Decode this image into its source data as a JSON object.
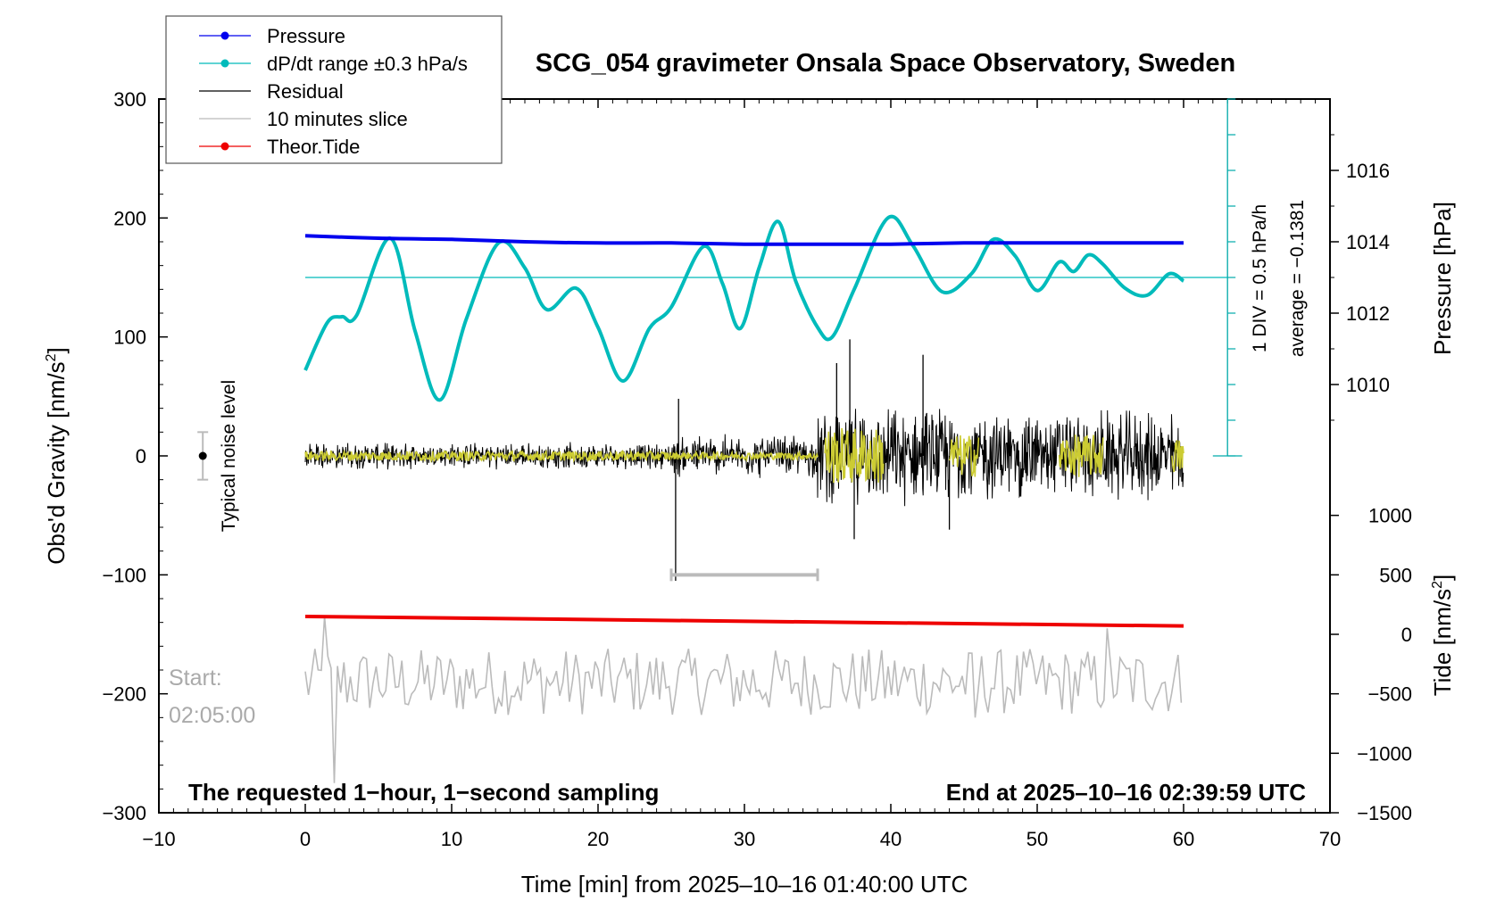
{
  "chart_data": {
    "type": "line",
    "title": "SCG_054 gravimeter Onsala Space Observatory, Sweden",
    "xlabel": "Time [min] from 2025–10–16 01:40:00 UTC",
    "ylabel_left": "Obs'd Gravity [nm/s",
    "ylabel_left_sup": "2",
    "ylabel_left_end": "]",
    "ylabel_right_pressure": "Pressure [hPa]",
    "ylabel_right_tide": "Tide [nm/s",
    "ylabel_right_tide_sup": "2",
    "ylabel_right_tide_end": "]",
    "xlim": [
      -10,
      70
    ],
    "ylim": [
      -300,
      300
    ],
    "x_ticks": [
      "−10",
      "0",
      "10",
      "20",
      "30",
      "40",
      "50",
      "60",
      "70"
    ],
    "y_ticks": [
      "−300",
      "−200",
      "−100",
      "0",
      "100",
      "200",
      "300"
    ],
    "pressure_axis": {
      "ticks": [
        "1010",
        "1012",
        "1014",
        "1016"
      ],
      "tick_values": [
        1010,
        1012,
        1014,
        1016
      ],
      "mapping": {
        "hpa_a": 1010,
        "grav_a": 60,
        "hpa_b": 1016,
        "grav_b": 240
      }
    },
    "tide_axis": {
      "ticks": [
        "1000",
        "500",
        "0",
        "−500",
        "−1000",
        "−1500"
      ],
      "tick_values": [
        1000,
        500,
        0,
        -500,
        -1000,
        -1500
      ],
      "mapping": {
        "tide_a": 1000,
        "grav_a": -50,
        "tide_b": -1500,
        "grav_b": -300
      }
    },
    "legend": [
      {
        "label": "Pressure",
        "color": "#0000ee",
        "marker": true
      },
      {
        "label": "dP/dt range ±0.3 hPa/s",
        "color": "#00bbbb",
        "marker": true
      },
      {
        "label": "Residual",
        "color": "#000000",
        "marker": false
      },
      {
        "label": "10 minutes slice",
        "color": "#bbbbbb",
        "marker": false
      },
      {
        "label": "Theor.Tide",
        "color": "#ee0000",
        "marker": true
      }
    ],
    "annotations": {
      "noise_label": "Typical noise level",
      "noise_center": 0,
      "noise_halfwidth": 20,
      "div_label": "1 DIV = 0.5 hPa/h",
      "average_label": "average = −0.1381",
      "start_label": "Start:",
      "start_time": "02:05:00",
      "bottom_left": "The requested 1−hour, 1−second sampling",
      "bottom_right": "End at 2025–10–16 02:39:59 UTC",
      "slice_range": [
        25,
        35
      ],
      "slice_y": -100,
      "dpdt_average_level": 150
    },
    "series": [
      {
        "name": "Pressure",
        "color": "#0000ee",
        "x": [
          0,
          5,
          10,
          15,
          20,
          25,
          30,
          35,
          40,
          45,
          50,
          55,
          60
        ],
        "y": [
          185,
          183,
          182,
          180,
          179,
          179,
          178,
          178,
          178,
          179,
          179,
          179,
          179
        ]
      },
      {
        "name": "dP/dt",
        "color": "#00bbbb",
        "x": [
          0,
          1.5,
          2.5,
          3.5,
          5.8,
          7.5,
          9.2,
          11,
          13.2,
          15,
          16.5,
          18.5,
          20,
          21.7,
          23.5,
          25,
          27.2,
          28.5,
          29.7,
          31,
          32.3,
          33.5,
          35,
          36,
          37.5,
          39.8,
          41.5,
          43.5,
          45.5,
          47,
          48.5,
          50,
          51.5,
          52.5,
          53.5,
          54.5,
          56,
          57.5,
          59,
          60
        ],
        "y": [
          72,
          112,
          117,
          118,
          183,
          105,
          47,
          115,
          179,
          158,
          123,
          141,
          108,
          63,
          107,
          125,
          176,
          145,
          107,
          158,
          197,
          147,
          108,
          100,
          140,
          200,
          177,
          138,
          153,
          182,
          168,
          139,
          163,
          155,
          169,
          161,
          141,
          135,
          153,
          147
        ]
      },
      {
        "name": "Theor.Tide",
        "color": "#ee0000",
        "x": [
          0,
          60
        ],
        "y": [
          -135,
          -143
        ]
      },
      {
        "name": "Residual",
        "color": "#000000",
        "segments": [
          {
            "x_range": [
              0,
              25
            ],
            "amplitude": 12
          },
          {
            "x_range": [
              25,
              35
            ],
            "amplitude": 20
          },
          {
            "x_range": [
              35,
              45
            ],
            "amplitude": 45
          },
          {
            "x_range": [
              45,
              60
            ],
            "amplitude": 42
          }
        ],
        "spikes": [
          {
            "x": 25.3,
            "y": -105
          },
          {
            "x": 25.5,
            "y": 48
          },
          {
            "x": 36.3,
            "y": 78
          },
          {
            "x": 37.2,
            "y": 98
          },
          {
            "x": 37.5,
            "y": -70
          },
          {
            "x": 42.2,
            "y": 85
          },
          {
            "x": 44,
            "y": -62
          }
        ]
      },
      {
        "name": "Residual (yellow)",
        "color": "#cccc33",
        "segments": [
          [
            0,
            25,
            4
          ],
          [
            25,
            35,
            3
          ],
          [
            35.5,
            39.5,
            24
          ],
          [
            44,
            46,
            18
          ],
          [
            51.5,
            54.5,
            18
          ],
          [
            59.2,
            60,
            15
          ]
        ]
      },
      {
        "name": "10 minutes slice",
        "color": "#bbbbbb",
        "baseline": -190,
        "amplitude": 28,
        "dips": [
          {
            "x": 2,
            "y": -275
          },
          {
            "x": 1.3,
            "y": -135
          },
          {
            "x": 54.8,
            "y": -145
          },
          {
            "x": 45.8,
            "y": -220
          }
        ]
      }
    ]
  }
}
